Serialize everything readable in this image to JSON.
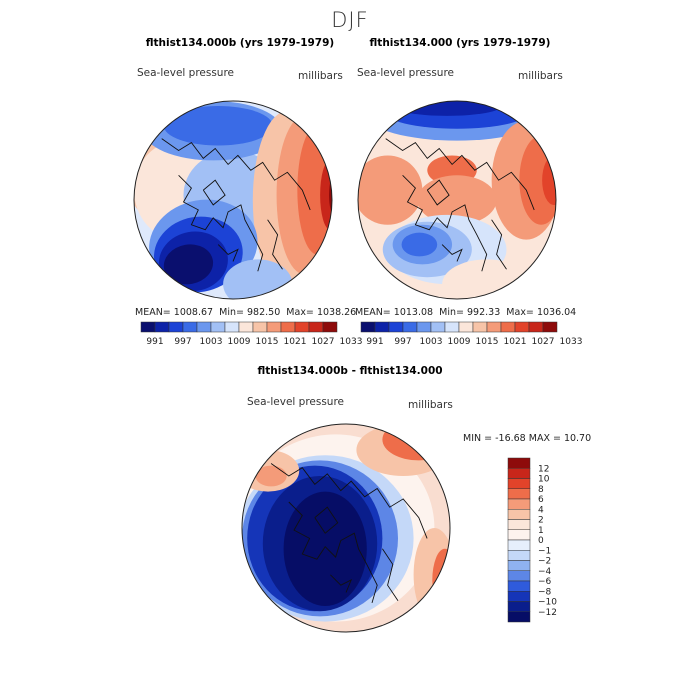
{
  "chart_data": [
    {
      "type": "heatmap",
      "projection": "north-polar-stereographic",
      "suptitle": "DJF",
      "title": "flthist134.000b (yrs 1979-1979)",
      "variable": "Sea-level pressure",
      "units": "millibars",
      "stats": {
        "mean_label": "MEAN=",
        "mean": "1008.67",
        "min_label": "Min=",
        "min": "982.50",
        "max_label": "Max=",
        "max": "1038.26"
      },
      "colorbar_ticks": [
        "991",
        "997",
        "1003",
        "1009",
        "1015",
        "1021",
        "1027",
        "1033"
      ],
      "colorbar_colors": [
        "#0a0f6e",
        "#0d22a8",
        "#1c43d6",
        "#3a6be6",
        "#6b97ee",
        "#a2c0f5",
        "#d6e4fb",
        "#fbe6da",
        "#f7c4a8",
        "#f49b79",
        "#ee6d4a",
        "#e2432a",
        "#c8261a",
        "#8e0b0b"
      ]
    },
    {
      "type": "heatmap",
      "projection": "north-polar-stereographic",
      "title": "flthist134.000 (yrs 1979-1979)",
      "variable": "Sea-level pressure",
      "units": "millibars",
      "stats": {
        "mean_label": "MEAN=",
        "mean": "1013.08",
        "min_label": "Min=",
        "min": "992.33",
        "max_label": "Max=",
        "max": "1036.04"
      },
      "colorbar_ticks": [
        "991",
        "997",
        "1003",
        "1009",
        "1015",
        "1021",
        "1027",
        "1033"
      ],
      "colorbar_colors": [
        "#0a0f6e",
        "#0d22a8",
        "#1c43d6",
        "#3a6be6",
        "#6b97ee",
        "#a2c0f5",
        "#d6e4fb",
        "#fbe6da",
        "#f7c4a8",
        "#f49b79",
        "#ee6d4a",
        "#e2432a",
        "#c8261a",
        "#8e0b0b"
      ]
    },
    {
      "type": "heatmap",
      "projection": "north-polar-stereographic",
      "title": "flthist134.000b - flthist134.000",
      "variable": "Sea-level pressure",
      "units": "millibars",
      "stats_text": "MIN = -16.68 MAX =  10.70",
      "colorbar_ticks": [
        "12",
        "10",
        "8",
        "6",
        "4",
        "2",
        "1",
        "0",
        "−1",
        "−2",
        "−4",
        "−6",
        "−8",
        "−10",
        "−12"
      ],
      "colorbar_colors": [
        "#8e0b0b",
        "#c8261a",
        "#e2432a",
        "#ee6d4a",
        "#f49b79",
        "#f7c4a8",
        "#fbe6da",
        "#fdf3ee",
        "#e6effc",
        "#c4d8f8",
        "#8fb2f0",
        "#5d86e6",
        "#2f5bdc",
        "#1535b8",
        "#0a1e8c",
        "#060d66"
      ]
    }
  ]
}
